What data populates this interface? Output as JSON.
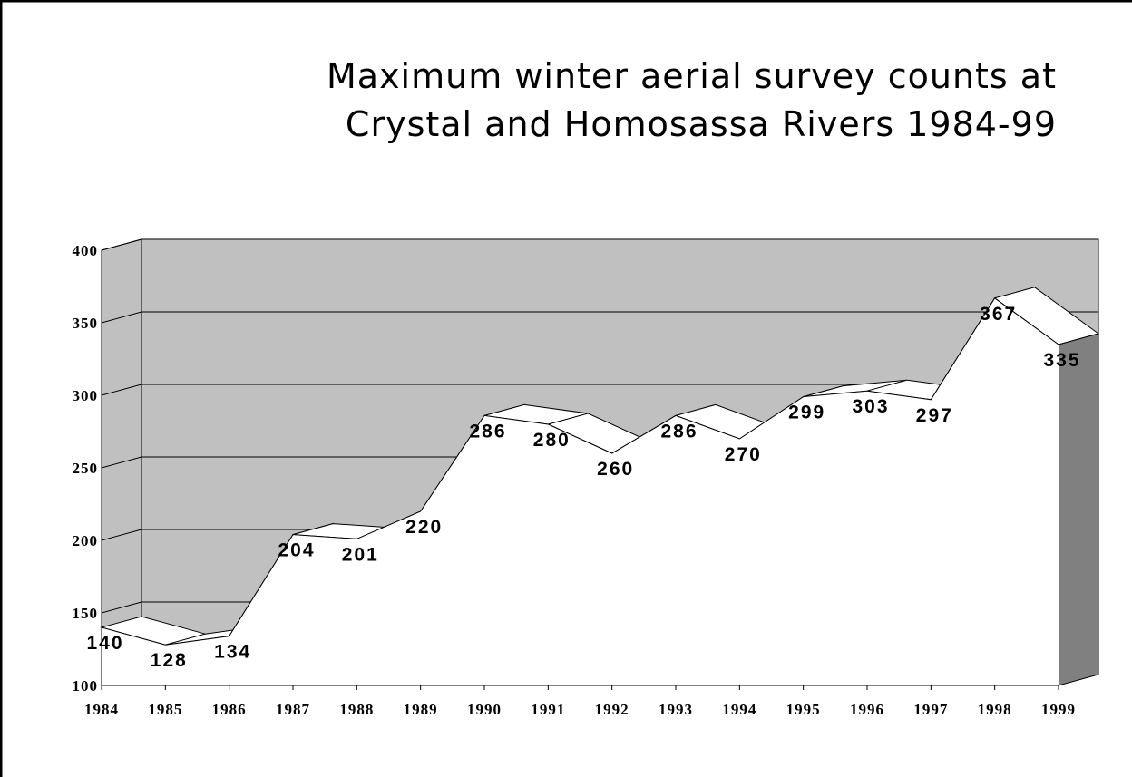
{
  "chart_data": {
    "type": "area",
    "title": "Maximum winter aerial survey counts at",
    "subtitle": "Crystal and Homosassa Rivers 1984-99",
    "categories": [
      "1984",
      "1985",
      "1986",
      "1987",
      "1988",
      "1989",
      "1990",
      "1991",
      "1992",
      "1993",
      "1994",
      "1995",
      "1996",
      "1997",
      "1998",
      "1999"
    ],
    "values": [
      140,
      128,
      134,
      204,
      201,
      220,
      286,
      280,
      260,
      286,
      270,
      299,
      303,
      297,
      367,
      335
    ],
    "color": "#ffffff",
    "ylim": [
      100,
      400
    ],
    "yticks": [
      100,
      150,
      200,
      250,
      300,
      350,
      400
    ],
    "grid": true
  }
}
